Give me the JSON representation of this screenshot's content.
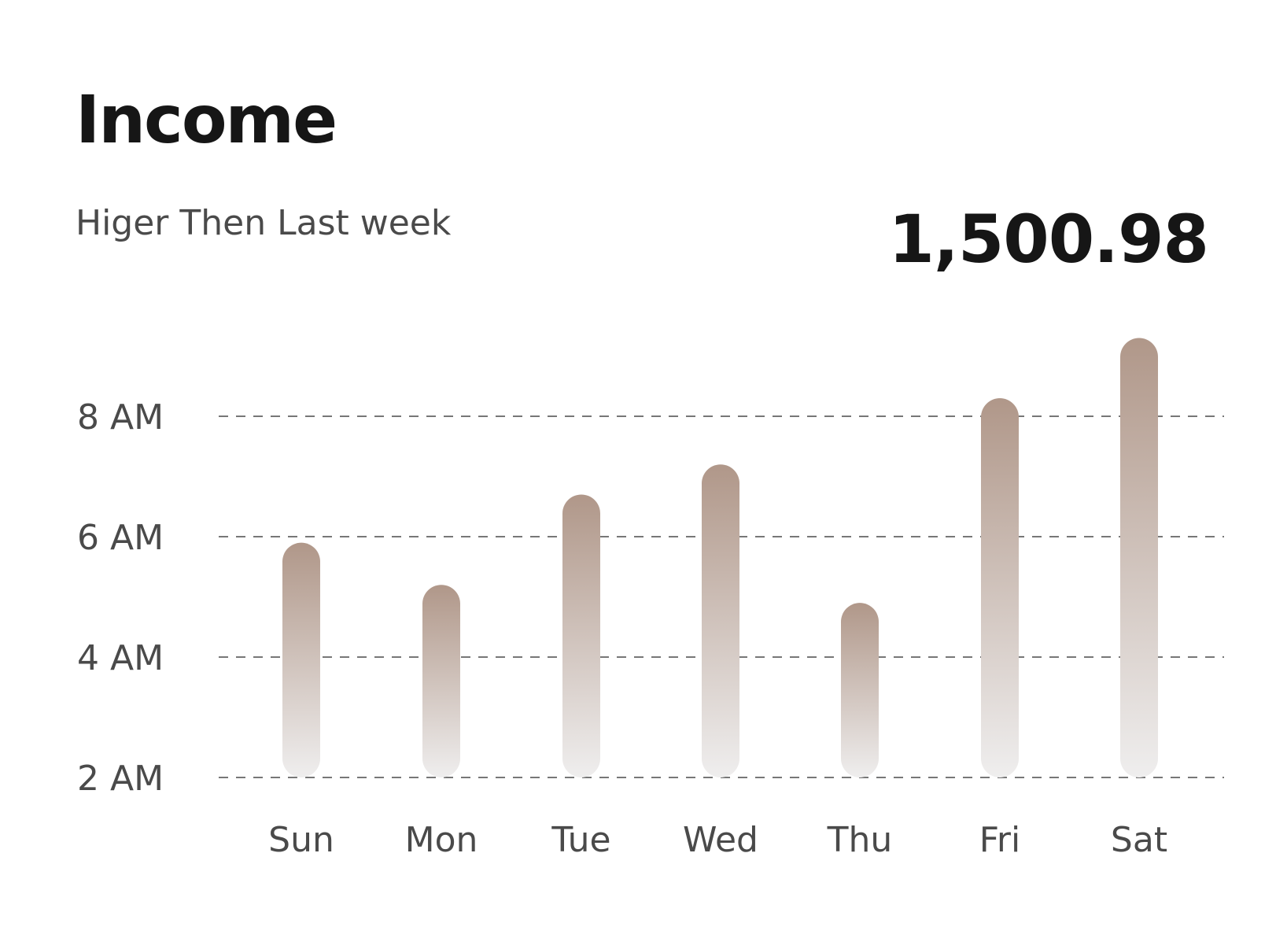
{
  "card": {
    "title": "Income",
    "subtitle": "Higer Then Last week",
    "amount": "1,500.98"
  },
  "colors": {
    "bar_top": "#b09789",
    "bar_bottom": "#efeeee",
    "grid": "#4a4a4a",
    "text_primary": "#161616",
    "text_secondary": "#4a4a4a"
  },
  "chart_data": {
    "type": "bar",
    "title": "Income",
    "xlabel": "",
    "ylabel": "",
    "categories": [
      "Sun",
      "Mon",
      "Tue",
      "Wed",
      "Thu",
      "Fri",
      "Sat"
    ],
    "values": [
      5.9,
      5.2,
      6.7,
      7.2,
      4.9,
      8.3,
      9.3
    ],
    "yticks": [
      2,
      4,
      6,
      8
    ],
    "ytick_labels": [
      "2 AM",
      "4 AM",
      "6 AM",
      "8 AM"
    ],
    "ylim": [
      2,
      9.4
    ],
    "grid": true,
    "grid_style": "dashed horizontal"
  }
}
